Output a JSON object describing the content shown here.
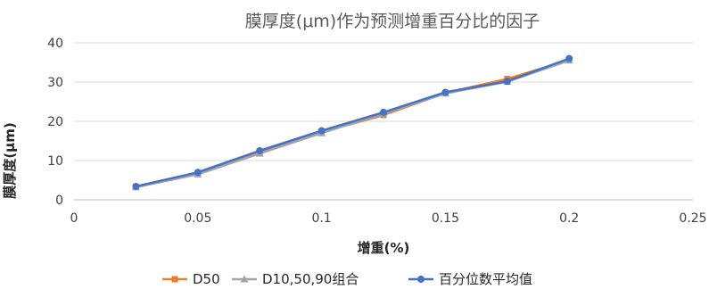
{
  "chart_data": {
    "type": "line",
    "title": "膜厚度(μm)作为预测增重百分比的因子",
    "xlabel": "增重(%)",
    "ylabel": "膜厚度(μm)",
    "xlim": [
      0,
      0.25
    ],
    "ylim": [
      0,
      40
    ],
    "xticks": [
      0,
      0.05,
      0.1,
      0.15,
      0.2,
      0.25
    ],
    "xtick_labels": [
      "0",
      "0.05",
      "0.1",
      "0.15",
      "0.2",
      "0.25"
    ],
    "yticks": [
      0,
      10,
      20,
      30,
      40
    ],
    "ytick_labels": [
      "0",
      "10",
      "20",
      "30",
      "40"
    ],
    "grid": "horizontal",
    "legend_position": "bottom",
    "series": [
      {
        "name": "D50",
        "color": "#ED7D31",
        "marker": "square",
        "x": [
          0.025,
          0.05,
          0.075,
          0.1,
          0.125,
          0.15,
          0.175,
          0.2
        ],
        "y": [
          3.3,
          6.6,
          12.0,
          17.2,
          21.6,
          27.2,
          30.8,
          35.6
        ]
      },
      {
        "name": "D10,50,90组合",
        "color": "#A5A5A5",
        "marker": "triangle",
        "x": [
          0.025,
          0.05,
          0.075,
          0.1,
          0.125,
          0.15,
          0.175,
          0.2
        ],
        "y": [
          3.2,
          6.5,
          11.8,
          17.0,
          22.0,
          27.1,
          30.1,
          35.5
        ]
      },
      {
        "name": "百分位数平均值",
        "color": "#4472C4",
        "marker": "circle",
        "x": [
          0.025,
          0.05,
          0.075,
          0.1,
          0.125,
          0.15,
          0.175,
          0.2
        ],
        "y": [
          3.4,
          7.0,
          12.5,
          17.6,
          22.3,
          27.4,
          30.2,
          36.0
        ]
      }
    ]
  }
}
